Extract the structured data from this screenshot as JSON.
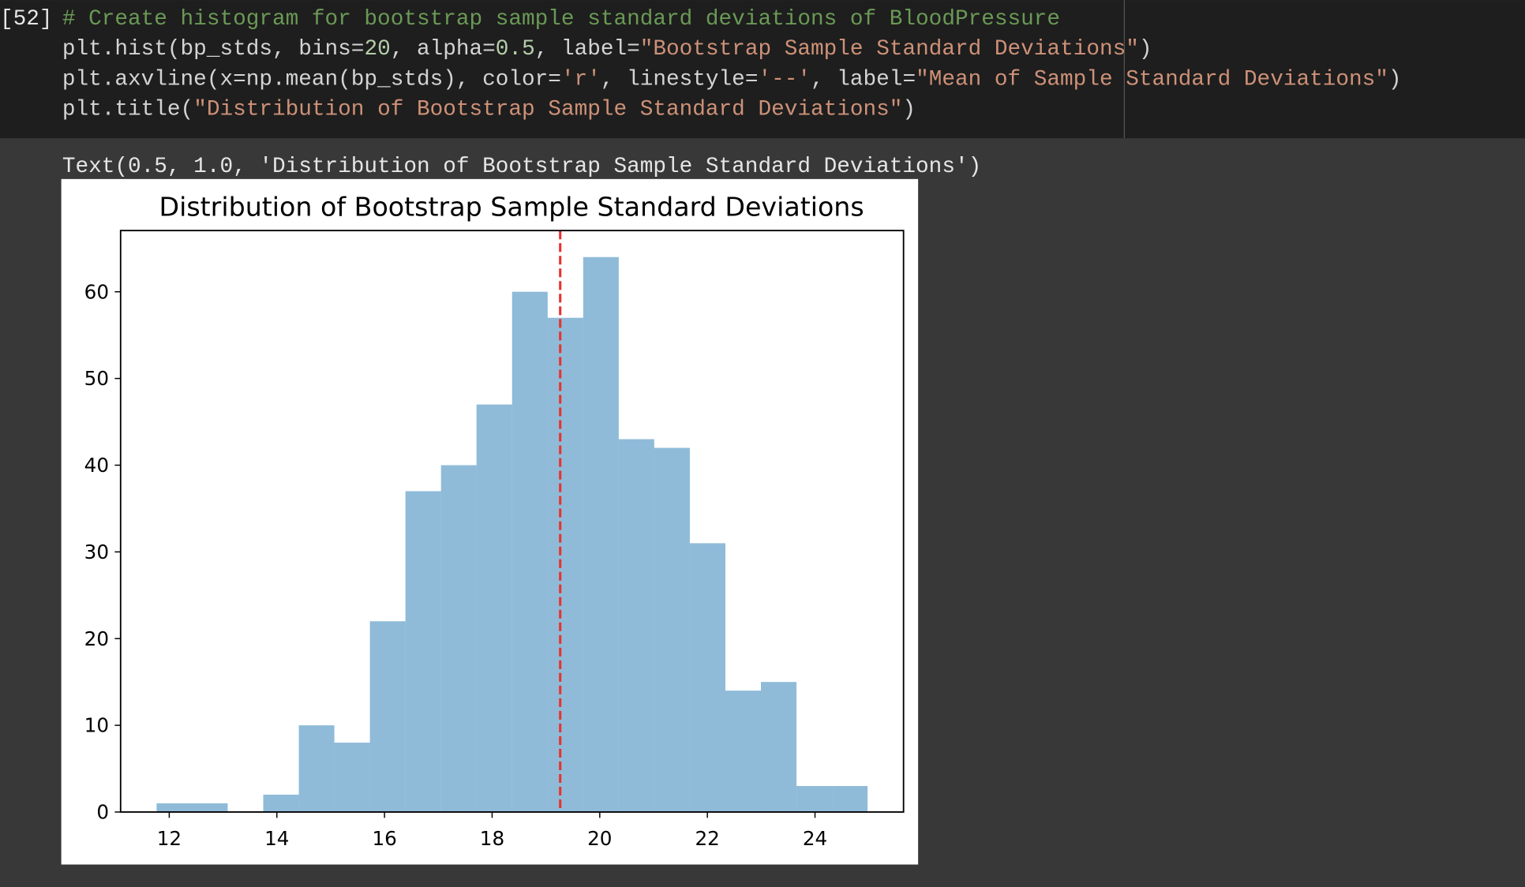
{
  "cell": {
    "execution_count": "[52]",
    "code": [
      [
        "# Create histogram for bootstrap sample standard deviations of BloodPressure"
      ],
      [
        "plt.hist(bp_stds, bins=",
        "20",
        ", alpha=",
        "0.5",
        ", label=",
        "\"Bootstrap Sample Standard Deviations\"",
        ")"
      ],
      [
        "plt.axvline(x=np.mean(bp_stds), color=",
        "'r'",
        ", linestyle=",
        "'--'",
        ", label=",
        "\"Mean of Sample Standard Deviations\"",
        ")"
      ],
      [
        "plt.title(",
        "\"Distribution of Bootstrap Sample Standard Deviations\"",
        ")"
      ]
    ],
    "output": "Text(0.5, 1.0, 'Distribution of Bootstrap Sample Standard Deviations')"
  },
  "chart_data": {
    "type": "histogram",
    "title": "Distribution of Bootstrap Sample Standard Deviations",
    "bins": [
      11.765,
      12.426,
      13.086,
      13.747,
      14.408,
      15.068,
      15.729,
      16.389,
      17.05,
      17.71,
      18.371,
      19.032,
      19.692,
      20.353,
      21.013,
      21.674,
      22.335,
      22.995,
      23.656,
      24.316,
      24.977
    ],
    "values": [
      1,
      1,
      0,
      2,
      10,
      8,
      22,
      37,
      40,
      47,
      60,
      57,
      64,
      43,
      42,
      31,
      14,
      15,
      3,
      3
    ],
    "color": "#1f77b4",
    "alpha": 0.5,
    "mean_line": {
      "value": 19.265,
      "color": "#e8322c"
    },
    "xlim": [
      11.096,
      25.645
    ],
    "xticks": [
      12,
      14,
      16,
      18,
      20,
      22,
      24
    ],
    "ylim": [
      0,
      67.06
    ],
    "yticks": [
      0,
      10,
      20,
      30,
      40,
      50,
      60
    ]
  }
}
